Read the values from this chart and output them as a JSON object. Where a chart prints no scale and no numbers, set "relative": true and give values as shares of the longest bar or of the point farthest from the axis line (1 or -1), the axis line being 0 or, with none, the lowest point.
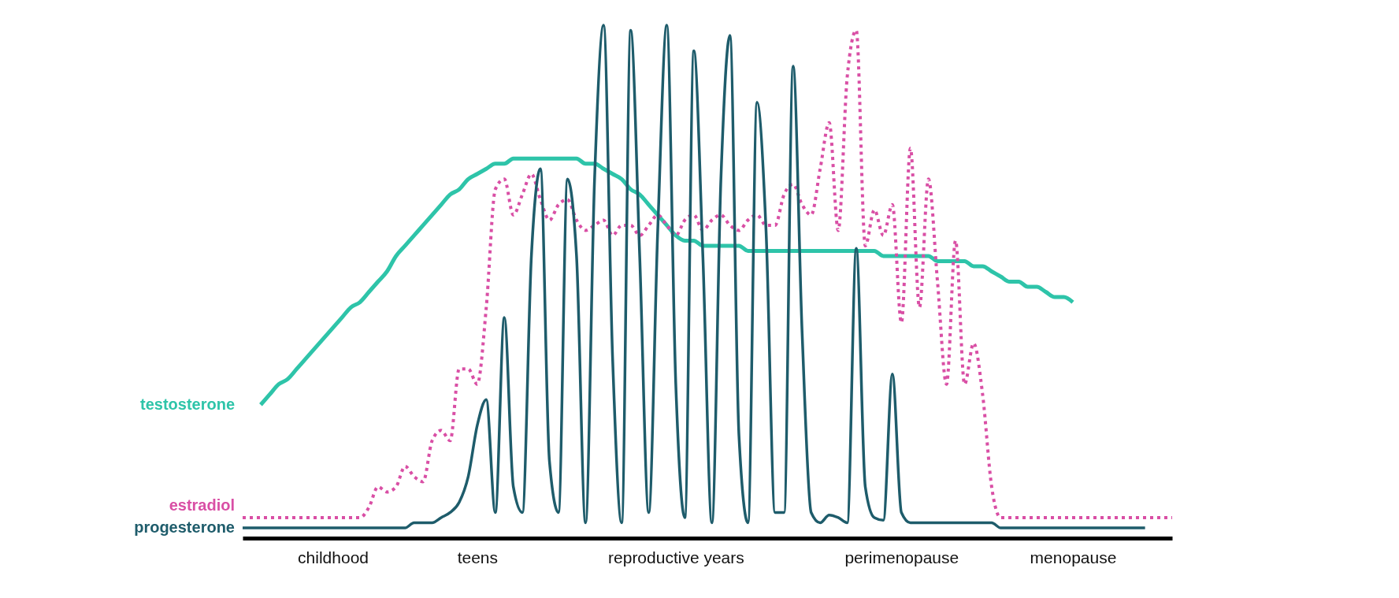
{
  "chart_data": {
    "type": "line",
    "relative": true,
    "line_style": "solid",
    "marker": "none",
    "categories": [
      null,
      null,
      null,
      null,
      null,
      null,
      null,
      null,
      null,
      null,
      "childhood",
      null,
      null,
      null,
      null,
      null,
      null,
      null,
      null,
      null,
      null,
      null,
      null,
      null,
      null,
      null,
      "teens",
      null,
      null,
      null,
      null,
      null,
      null,
      null,
      null,
      null,
      null,
      null,
      null,
      null,
      null,
      null,
      null,
      null,
      null,
      null,
      null,
      null,
      "reproductive years",
      null,
      null,
      null,
      null,
      null,
      null,
      null,
      null,
      null,
      null,
      null,
      null,
      null,
      null,
      null,
      null,
      null,
      null,
      null,
      null,
      null,
      null,
      null,
      null,
      "perimenopause",
      null,
      null,
      null,
      null,
      null,
      null,
      null,
      null,
      null,
      null,
      null,
      null,
      null,
      null,
      null,
      null,
      null,
      null,
      "menopause",
      null,
      null,
      null,
      null,
      null,
      null,
      null,
      null,
      null,
      null,
      null
    ],
    "series": [
      {
        "name": "testosterone",
        "color": "#2ec4a9",
        "values": [
          null,
          null,
          0.26,
          0.28,
          0.3,
          0.31,
          0.33,
          0.35,
          0.37,
          0.39,
          0.41,
          0.43,
          0.45,
          0.46,
          0.48,
          0.5,
          0.52,
          0.55,
          0.57,
          0.59,
          0.61,
          0.63,
          0.65,
          0.67,
          0.68,
          0.7,
          0.71,
          0.72,
          0.73,
          0.73,
          0.74,
          0.74,
          0.74,
          0.74,
          0.74,
          0.74,
          0.74,
          0.74,
          0.73,
          0.73,
          0.72,
          0.71,
          0.7,
          0.68,
          0.67,
          0.65,
          0.63,
          0.61,
          0.59,
          0.58,
          0.58,
          0.57,
          0.57,
          0.57,
          0.57,
          0.57,
          0.56,
          0.56,
          0.56,
          0.56,
          0.56,
          0.56,
          0.56,
          0.56,
          0.56,
          0.56,
          0.56,
          0.56,
          0.56,
          0.56,
          0.56,
          0.55,
          0.55,
          0.55,
          0.55,
          0.55,
          0.55,
          0.54,
          0.54,
          0.54,
          0.54,
          0.53,
          0.53,
          0.52,
          0.51,
          0.5,
          0.5,
          0.49,
          0.49,
          0.48,
          0.47,
          0.47,
          0.46,
          null,
          null,
          null,
          null,
          null,
          null,
          null,
          null,
          null,
          null,
          null
        ]
      },
      {
        "name": "estradiol",
        "color": "#d94fa5",
        "line_style": "dotted",
        "values": [
          0.04,
          0.04,
          0.04,
          0.04,
          0.04,
          0.04,
          0.04,
          0.04,
          0.04,
          0.04,
          0.04,
          0.04,
          0.04,
          0.04,
          0.06,
          0.1,
          0.09,
          0.1,
          0.14,
          0.12,
          0.11,
          0.19,
          0.21,
          0.19,
          0.33,
          0.33,
          0.3,
          0.45,
          0.68,
          0.7,
          0.63,
          0.67,
          0.71,
          0.66,
          0.62,
          0.65,
          0.66,
          0.62,
          0.6,
          0.61,
          0.62,
          0.59,
          0.61,
          0.61,
          0.59,
          0.61,
          0.63,
          0.61,
          0.59,
          0.62,
          0.63,
          0.6,
          0.62,
          0.63,
          0.61,
          0.6,
          0.62,
          0.63,
          0.61,
          0.61,
          0.67,
          0.69,
          0.65,
          0.63,
          0.72,
          0.81,
          0.6,
          0.9,
          0.99,
          0.57,
          0.64,
          0.59,
          0.65,
          0.42,
          0.76,
          0.45,
          0.7,
          0.5,
          0.3,
          0.58,
          0.3,
          0.38,
          0.28,
          0.1,
          0.04,
          0.04,
          0.04,
          0.04,
          0.04,
          0.04,
          0.04,
          0.04,
          0.04,
          0.04,
          0.04,
          0.04,
          0.04,
          0.04,
          0.04,
          0.04,
          0.04,
          0.04,
          0.04,
          0.04
        ]
      },
      {
        "name": "progesterone",
        "color": "#1e5c6b",
        "values": [
          0.02,
          0.02,
          0.02,
          0.02,
          0.02,
          0.02,
          0.02,
          0.02,
          0.02,
          0.02,
          0.02,
          0.02,
          0.02,
          0.02,
          0.02,
          0.02,
          0.02,
          0.02,
          0.02,
          0.03,
          0.03,
          0.03,
          0.04,
          0.05,
          0.07,
          0.12,
          0.22,
          0.27,
          0.05,
          0.43,
          0.1,
          0.05,
          0.55,
          0.72,
          0.15,
          0.05,
          0.7,
          0.55,
          0.03,
          0.7,
          1.0,
          0.35,
          0.03,
          0.99,
          0.55,
          0.05,
          0.6,
          1.0,
          0.3,
          0.04,
          0.95,
          0.55,
          0.03,
          0.7,
          0.98,
          0.2,
          0.03,
          0.85,
          0.6,
          0.05,
          0.05,
          0.92,
          0.4,
          0.05,
          0.03,
          0.045,
          0.04,
          0.03,
          0.565,
          0.1,
          0.04,
          0.035,
          0.32,
          0.05,
          0.03,
          0.03,
          0.03,
          0.03,
          0.03,
          0.03,
          0.03,
          0.03,
          0.03,
          0.03,
          0.02,
          0.02,
          0.02,
          0.02,
          0.02,
          0.02,
          0.02,
          0.02,
          0.02,
          0.02,
          0.02,
          0.02,
          0.02,
          0.02,
          0.02,
          0.02,
          0.02,
          null,
          null,
          null
        ]
      }
    ]
  }
}
